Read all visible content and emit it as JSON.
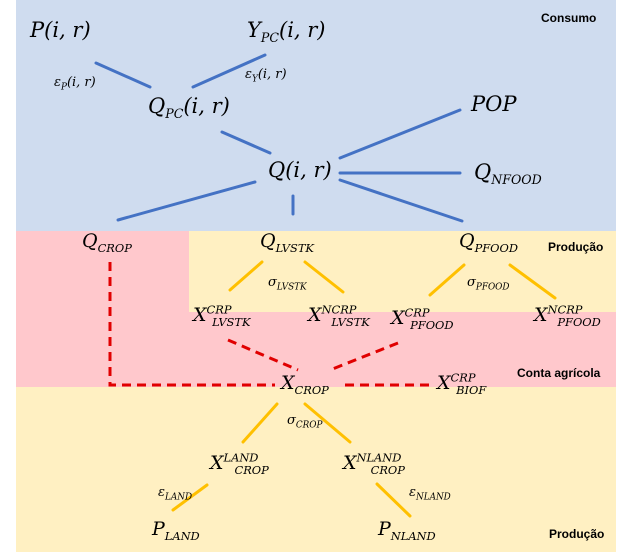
{
  "regions": {
    "consumo": "Consumo",
    "producao_top": "Produção",
    "conta_agricola": "Conta agrícola",
    "producao_bottom": "Produção"
  },
  "colors": {
    "consumo_bg": "#cfdcef",
    "producao_bg": "#fff0c2",
    "conta_bg": "#ffc8cc",
    "blue_links": "#4472c4",
    "yellow_links": "#ffc000",
    "red_dashed": "#e00000"
  },
  "nodes": {
    "p": {
      "base": "P",
      "args": "(i, r)"
    },
    "ypc": {
      "base": "Y",
      "sub": "PC",
      "args": "(i, r)"
    },
    "qpc": {
      "base": "Q",
      "sub": "PC",
      "args": "(i, r)"
    },
    "pop": {
      "base": "POP"
    },
    "q": {
      "base": "Q",
      "args": "(i, r)"
    },
    "qnfood": {
      "base": "Q",
      "sub": "NFOOD"
    },
    "qcrop": {
      "base": "Q",
      "sub": "CROP"
    },
    "qlvstk": {
      "base": "Q",
      "sub": "LVSTK"
    },
    "qpfood": {
      "base": "Q",
      "sub": "PFOOD"
    },
    "x_lvstk_crp": {
      "base": "X",
      "sup": "CRP",
      "sub": "LVSTK"
    },
    "x_lvstk_ncrp": {
      "base": "X",
      "sup": "NCRP",
      "sub": "LVSTK"
    },
    "x_pfood_crp": {
      "base": "X",
      "sup": "CRP",
      "sub": "PFOOD"
    },
    "x_pfood_ncrp": {
      "base": "X",
      "sup": "NCRP",
      "sub": "PFOOD"
    },
    "xcrop": {
      "base": "X",
      "sub": "CROP"
    },
    "x_biof_crp": {
      "base": "X",
      "sup": "CRP",
      "sub": "BIOF"
    },
    "x_crop_land": {
      "base": "X",
      "sup": "LAND",
      "sub": "CROP"
    },
    "x_crop_nland": {
      "base": "X",
      "sup": "NLAND",
      "sub": "CROP"
    },
    "pland": {
      "base": "P",
      "sub": "LAND"
    },
    "pnland": {
      "base": "P",
      "sub": "NLAND"
    }
  },
  "params": {
    "eps_p": {
      "base": "ε",
      "sub": "P",
      "args": "(i, r)"
    },
    "eps_y": {
      "base": "ε",
      "sub": "Y",
      "args": "(i, r)"
    },
    "sig_lvstk": {
      "base": "σ",
      "sub": "LVSTK"
    },
    "sig_pfood": {
      "base": "σ",
      "sub": "PFOOD"
    },
    "sig_crop": {
      "base": "σ",
      "sub": "CROP"
    },
    "eps_land": {
      "base": "ε",
      "sub": "LAND"
    },
    "eps_nland": {
      "base": "ε",
      "sub": "NLAND"
    }
  }
}
